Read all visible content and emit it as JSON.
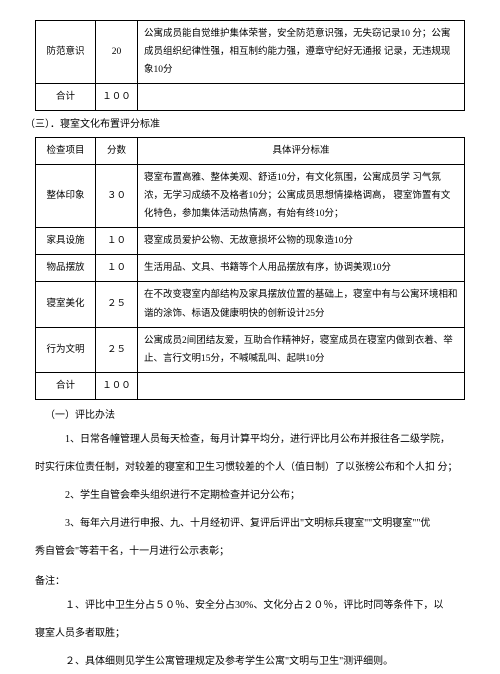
{
  "table1": {
    "rows": [
      {
        "name": "防范意识",
        "score": "20",
        "desc": "公寓成员能自觉维护集体荣誉，安全防范意识强，无失窃记录10 分；公寓成员组织纪律性强，相互制约能力强，遵章守纪好无通报 记录，无违规现象10分"
      },
      {
        "name": "合计",
        "score": "１００",
        "desc": ""
      }
    ]
  },
  "section3_label": "（三）．寝室文化布置评分标准",
  "table2": {
    "header": {
      "c1": "检查项目",
      "c2": "分数",
      "c3": "具体评分标准"
    },
    "rows": [
      {
        "name": "整体印象",
        "score": "３０",
        "desc": "寝室布置高雅、整体美观、舒适10分，有文化氛围，公寓成员学 习气氛浓，无学习成绩不及格者10分；公寓成员思想情操格调高， 寝室饰置有文化特色，参加集体活动热情高，有始有终10分；"
      },
      {
        "name": "家具设施",
        "score": "１０",
        "desc": "寝室成员爱护公物、无故意损坏公物的现象造10分"
      },
      {
        "name": "物品摆放",
        "score": "１０",
        "desc": "生活用品、文具、书籍等个人用品摆放有序，协调美观10分"
      },
      {
        "name": "寝室美化",
        "score": "２５",
        "desc": "在不改变寝室内部结构及家具摆放位置的基础上，寝室中有与公寓环境相和谐的涂饰、标语及健康明快的创新设计25分"
      },
      {
        "name": "行为文明",
        "score": "２５",
        "desc": "公寓成员2间团结友爱，互助合作精神好，寝室成员在寝室内做到衣着、举止、言行文明15分，不喊喊乱叫、起哄10分"
      },
      {
        "name": "合计",
        "score": "１００",
        "desc": ""
      }
    ]
  },
  "subheading1": "（一）评比办法",
  "paras": {
    "p1a": "1、日常各幢管理人员每天检查，每月计算平均分，进行评比月公布并报往各二级学院，",
    "p1b": "时实行床位责任制，对较差的寝室和卫生习惯较差的个人（值日制）了以张榜公布和个人扣 分；",
    "p2": "2、学生自管会牵头组织进行不定期检查并记分公布；",
    "p3a": "3、每年六月进行申报、九、十月经初评、复评后评出\"文明标兵寝室\"\"文明寝室\"\"优",
    "p3b": "秀自管会\"等若干名，十一月进行公示表彰；"
  },
  "note_heading": "备注：",
  "notes": {
    "n1a": "１、评比中卫生分占５０％、安全分占30%、文化分占２０％，评比时同等条件下，以",
    "n1b": "寝室人员多者取胜；",
    "n2": "２、具体细则见学生公寓管理规定及参考学生公寓\"文明与卫生\"测评细则。"
  }
}
